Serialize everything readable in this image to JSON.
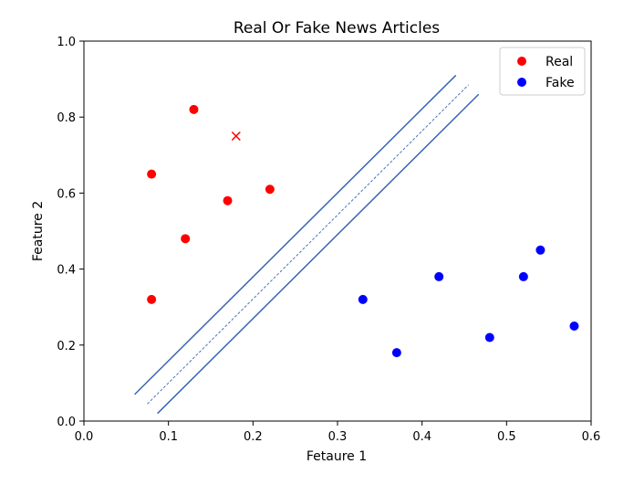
{
  "chart_data": {
    "type": "scatter",
    "title": "Real Or Fake News Articles",
    "xlabel": "Fetaure 1",
    "ylabel": "Feature 2",
    "xlim": [
      0.0,
      0.6
    ],
    "ylim": [
      0.0,
      1.0
    ],
    "x_ticks": [
      0.0,
      0.1,
      0.2,
      0.3,
      0.4,
      0.5,
      0.6
    ],
    "x_tick_labels": [
      "0.0",
      "0.1",
      "0.2",
      "0.3",
      "0.4",
      "0.5",
      "0.6"
    ],
    "y_ticks": [
      0.0,
      0.2,
      0.4,
      0.6,
      0.8,
      1.0
    ],
    "y_tick_labels": [
      "0.0",
      "0.2",
      "0.4",
      "0.6",
      "0.8",
      "1.0"
    ],
    "grid": false,
    "legend_position": "top-right",
    "series": [
      {
        "name": "Real",
        "color": "#ff0000",
        "marker": "circle",
        "points": [
          {
            "x": 0.08,
            "y": 0.65
          },
          {
            "x": 0.13,
            "y": 0.82
          },
          {
            "x": 0.17,
            "y": 0.58
          },
          {
            "x": 0.22,
            "y": 0.61
          },
          {
            "x": 0.12,
            "y": 0.48
          },
          {
            "x": 0.08,
            "y": 0.32
          }
        ]
      },
      {
        "name": "Fake",
        "color": "#0000ff",
        "marker": "circle",
        "points": [
          {
            "x": 0.33,
            "y": 0.32
          },
          {
            "x": 0.37,
            "y": 0.18
          },
          {
            "x": 0.42,
            "y": 0.38
          },
          {
            "x": 0.48,
            "y": 0.22
          },
          {
            "x": 0.52,
            "y": 0.38
          },
          {
            "x": 0.54,
            "y": 0.45
          },
          {
            "x": 0.58,
            "y": 0.25
          }
        ]
      }
    ],
    "extra_points": [
      {
        "x": 0.18,
        "y": 0.75,
        "marker": "x",
        "color": "#ff0000"
      }
    ],
    "boundary_lines": [
      {
        "role": "margin-upper",
        "style": "solid",
        "color": "#3a66b0",
        "x": [
          0.06,
          0.44
        ],
        "y": [
          0.07,
          0.91
        ]
      },
      {
        "role": "decision-boundary",
        "style": "dashed",
        "color": "#3a66b0",
        "x": [
          0.075,
          0.455
        ],
        "y": [
          0.045,
          0.885
        ]
      },
      {
        "role": "margin-lower",
        "style": "solid",
        "color": "#3a66b0",
        "x": [
          0.087,
          0.467
        ],
        "y": [
          0.02,
          0.86
        ]
      }
    ]
  }
}
